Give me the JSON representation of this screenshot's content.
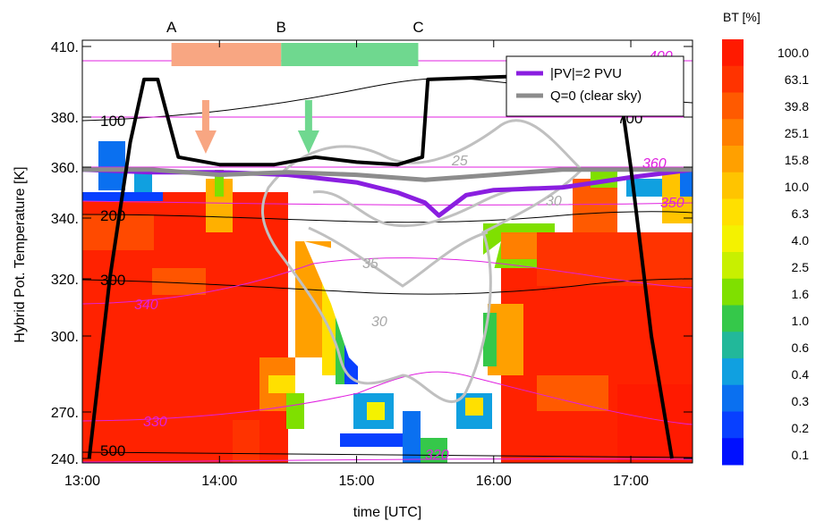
{
  "chart_data": {
    "type": "heatmap",
    "xlabel": "time [UTC]",
    "ylabel": "Hybrid Pot. Temperature [K]",
    "x_ticks": [
      "13:00",
      "14:00",
      "15:00",
      "16:00",
      "17:00"
    ],
    "x_tick_values": [
      13.0,
      14.0,
      15.0,
      16.0,
      17.0
    ],
    "xlim": [
      13.0,
      17.45
    ],
    "y_ticks": [
      "240.",
      "270.",
      "300.",
      "320.",
      "340.",
      "360.",
      "380.",
      "410."
    ],
    "y_tick_values": [
      240,
      270,
      300,
      320,
      340,
      360,
      380,
      410
    ],
    "colorbar": {
      "title": "BT [%]",
      "ticks": [
        "100.0",
        "63.1",
        "39.8",
        "25.1",
        "15.8",
        "10.0",
        "6.3",
        "4.0",
        "2.5",
        "1.6",
        "1.0",
        "0.6",
        "0.4",
        "0.3",
        "0.2",
        "0.1"
      ],
      "colors": [
        "#ff1a00",
        "#ff3300",
        "#ff5a00",
        "#ff7f00",
        "#ffa000",
        "#ffc400",
        "#ffe000",
        "#f4f200",
        "#c8f000",
        "#7fe000",
        "#35c84a",
        "#22b89a",
        "#10a0e0",
        "#0a70f0",
        "#0840ff",
        "#0010ff"
      ]
    },
    "segments": [
      {
        "label": "A",
        "x_start": 13.65,
        "x_end": 14.45,
        "color": "#f8a682"
      },
      {
        "label": "B",
        "x_start": 14.45,
        "x_end": 15.45,
        "color": "#6fd88f"
      },
      {
        "label": "C",
        "x_start": 15.45,
        "x_end": 15.45,
        "color": ""
      }
    ],
    "arrows": [
      {
        "x": 13.9,
        "color": "#f8a682"
      },
      {
        "x": 14.65,
        "color": "#6fd88f"
      }
    ],
    "legend": {
      "position": "top-right",
      "entries": [
        {
          "label": "|PV|=2 PVU",
          "color": "#8a1ee0"
        },
        {
          "label": "Q=0 (clear sky)",
          "color": "#8c8c8c"
        }
      ]
    },
    "series": [
      {
        "name": "|PV|=2 PVU",
        "color": "#8a1ee0",
        "x": [
          13.0,
          13.5,
          14.0,
          14.5,
          15.0,
          15.3,
          15.5,
          15.6,
          15.8,
          16.0,
          16.5,
          17.0,
          17.45
        ],
        "y": [
          359,
          358,
          358,
          357,
          354,
          350,
          346,
          341,
          349,
          351,
          352,
          356,
          359
        ]
      },
      {
        "name": "Q=0 (clear sky)",
        "color": "#8c8c8c",
        "x": [
          13.0,
          13.5,
          14.0,
          14.5,
          15.0,
          15.5,
          16.0,
          16.5,
          17.0,
          17.45
        ],
        "y": [
          359,
          359,
          357,
          358,
          357,
          355,
          357,
          359,
          359,
          359
        ]
      },
      {
        "name": "",
        "color": "#000000",
        "x": [
          13.05,
          13.2,
          13.35,
          13.45,
          13.55,
          13.7,
          14.0,
          14.4,
          14.7,
          15.0,
          15.3,
          15.48,
          15.52,
          16.0,
          16.5,
          16.8,
          16.9,
          17.0,
          17.15,
          17.3
        ],
        "y": [
          240,
          320,
          370,
          396,
          396,
          364,
          361,
          361,
          364,
          362,
          361,
          364,
          396,
          397,
          398,
          398,
          400,
          360,
          300,
          240
        ]
      }
    ],
    "contour_labels_black": [
      "100",
      "200",
      "300",
      "500",
      "700"
    ],
    "contour_labels_magenta": [
      "400",
      "360",
      "350",
      "340",
      "330",
      "320"
    ],
    "contour_labels_grey": [
      "25",
      "30",
      "35",
      "30"
    ]
  }
}
